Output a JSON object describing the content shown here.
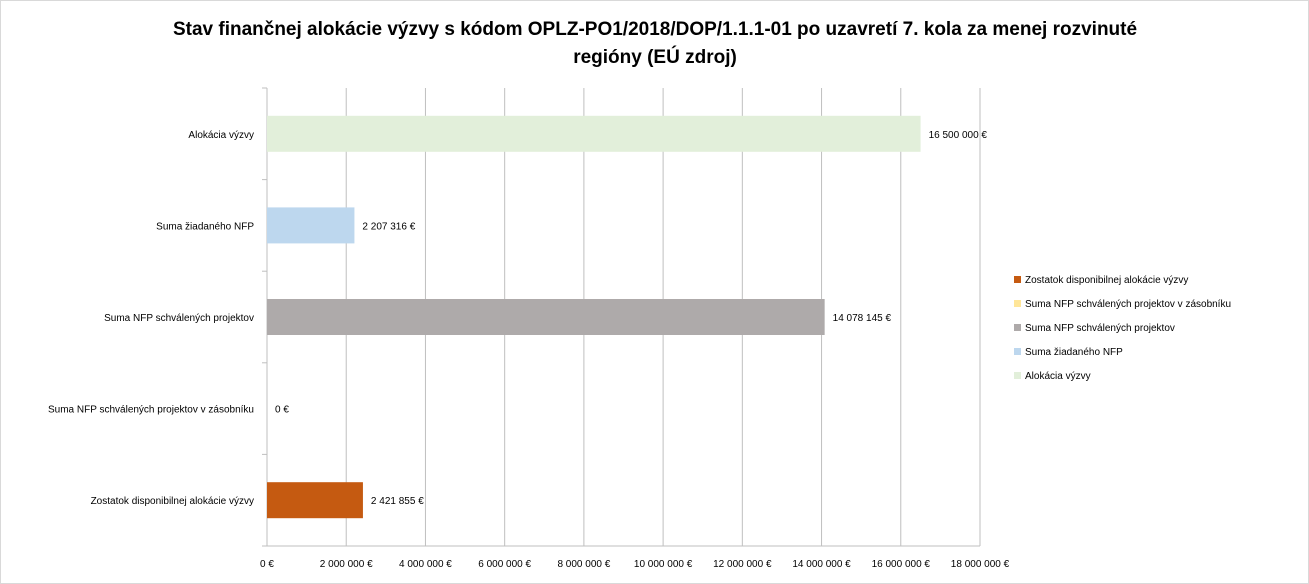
{
  "chart_data": {
    "type": "bar",
    "orientation": "horizontal",
    "title": "Stav finančnej alokácie výzvy s kódom OPLZ-PO1/2018/DOP/1.1.1-01 po uzavretí 7. kola za menej rozvinuté regióny (EÚ zdroj)",
    "categories": [
      "Alokácia výzvy",
      "Suma žiadaného NFP",
      "Suma NFP schválených projektov",
      "Suma NFP schválených projektov v zásobníku",
      "Zostatok disponibilnej alokácie výzvy"
    ],
    "values": [
      16500000,
      2207316,
      14078145,
      0,
      2421855
    ],
    "data_labels": [
      "16 500 000 €",
      "2 207 316 €",
      "14 078 145 €",
      "0 €",
      "2 421 855 €"
    ],
    "colors": [
      "#e2efda",
      "#bdd7ee",
      "#aeaaaa",
      "#ffe699",
      "#c55a11"
    ],
    "xlim": [
      0,
      18000000
    ],
    "x_ticks": [
      0,
      2000000,
      4000000,
      6000000,
      8000000,
      10000000,
      12000000,
      14000000,
      16000000,
      18000000
    ],
    "x_tick_labels": [
      "0 €",
      "2 000 000 €",
      "4 000 000 €",
      "6 000 000 €",
      "8 000 000 €",
      "10 000 000 €",
      "12 000 000 €",
      "14 000 000 €",
      "16 000 000 €",
      "18 000 000 €"
    ],
    "grid": "vertical",
    "legend_position": "right",
    "legend": [
      {
        "label": "Zostatok disponibilnej alokácie výzvy",
        "color": "#c55a11"
      },
      {
        "label": "Suma NFP schválených projektov v zásobníku",
        "color": "#ffe699"
      },
      {
        "label": "Suma NFP schválených projektov",
        "color": "#aeaaaa"
      },
      {
        "label": "Suma žiadaného NFP",
        "color": "#bdd7ee"
      },
      {
        "label": "Alokácia výzvy",
        "color": "#e2efda"
      }
    ]
  }
}
